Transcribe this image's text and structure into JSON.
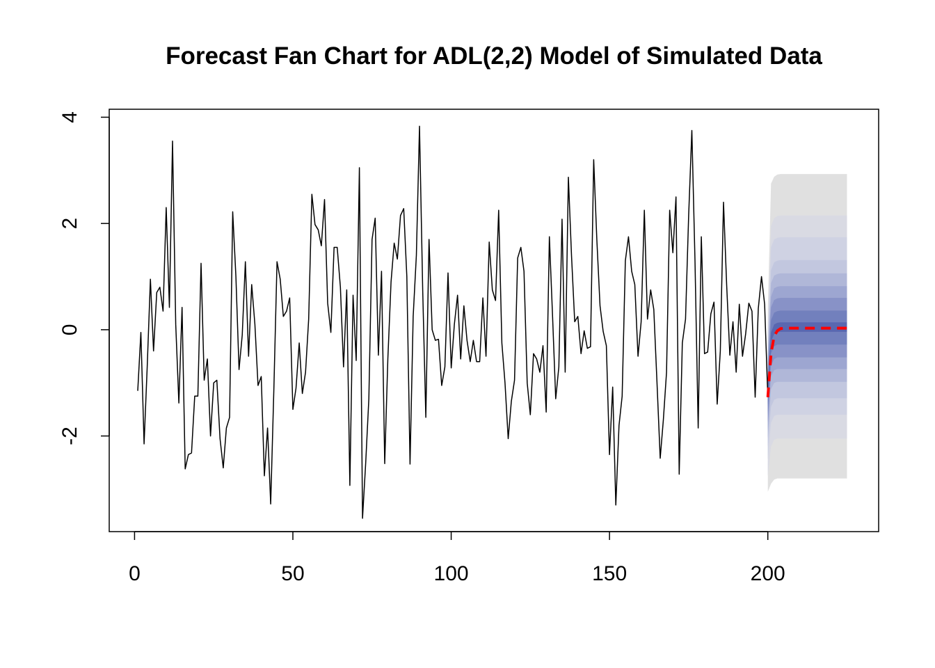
{
  "chart_data": {
    "type": "line",
    "title": "Forecast Fan Chart for ADL(2,2) Model of Simulated Data",
    "xlabel": "",
    "ylabel": "",
    "xlim": [
      -8,
      235
    ],
    "ylim": [
      -3.8,
      4.15
    ],
    "x_ticks": [
      0,
      50,
      100,
      150,
      200
    ],
    "y_ticks": [
      -2,
      0,
      2,
      4
    ],
    "x_tick_labels": [
      "0",
      "50",
      "100",
      "150",
      "200"
    ],
    "y_tick_labels": [
      "-2",
      "0",
      "2",
      "4"
    ],
    "grid": false,
    "legend": "none",
    "series": [
      {
        "role": "observed",
        "color": "#000000",
        "x_start": 1,
        "values": [
          -1.15,
          -0.05,
          -2.15,
          -0.7,
          0.95,
          -0.4,
          0.7,
          0.8,
          0.35,
          2.3,
          0.42,
          3.55,
          0.1,
          -1.38,
          0.42,
          -2.62,
          -2.35,
          -2.32,
          -1.25,
          -1.25,
          1.25,
          -0.95,
          -0.55,
          -2.0,
          -1.0,
          -0.95,
          -2.05,
          -2.6,
          -1.85,
          -1.65,
          2.22,
          1.0,
          -0.75,
          -0.1,
          1.28,
          -0.5,
          0.85,
          0.1,
          -1.05,
          -0.88,
          -2.75,
          -1.85,
          -3.28,
          -1.1,
          1.28,
          0.95,
          0.25,
          0.35,
          0.6,
          -1.5,
          -1.1,
          -0.25,
          -1.2,
          -0.8,
          0.2,
          2.55,
          1.98,
          1.88,
          1.58,
          2.45,
          0.5,
          -0.05,
          1.55,
          1.55,
          0.8,
          -0.7,
          0.75,
          -2.93,
          0.65,
          -0.58,
          3.05,
          -3.55,
          -2.5,
          -1.3,
          1.7,
          2.1,
          -0.48,
          1.1,
          -2.52,
          -0.55,
          0.9,
          1.63,
          1.33,
          2.15,
          2.28,
          1.0,
          -2.53,
          0.25,
          1.4,
          3.83,
          0.75,
          -1.65,
          1.7,
          0.0,
          -0.2,
          -0.18,
          -1.05,
          -0.7,
          1.07,
          -0.72,
          0.1,
          0.65,
          -0.55,
          0.45,
          -0.2,
          -0.6,
          -0.2,
          -0.6,
          -0.6,
          0.6,
          -0.5,
          1.65,
          0.75,
          0.55,
          2.25,
          -0.25,
          -1.0,
          -2.05,
          -1.35,
          -0.95,
          1.35,
          1.55,
          1.1,
          -1.0,
          -1.6,
          -0.45,
          -0.55,
          -0.8,
          -0.3,
          -1.55,
          1.75,
          0.28,
          -1.3,
          -0.7,
          2.08,
          -0.8,
          2.87,
          1.4,
          0.15,
          0.25,
          -0.45,
          -0.02,
          -0.35,
          -0.32,
          3.2,
          1.7,
          0.45,
          -0.03,
          -0.3,
          -2.35,
          -1.08,
          -3.3,
          -1.8,
          -1.25,
          1.3,
          1.75,
          1.1,
          0.85,
          -0.5,
          0.15,
          2.25,
          0.2,
          0.75,
          0.38,
          -1.0,
          -2.42,
          -1.7,
          -0.8,
          2.25,
          1.45,
          2.5,
          -2.72,
          -0.25,
          0.2,
          2.15,
          3.75,
          1.3,
          -1.85,
          1.75,
          -0.45,
          -0.42,
          0.3,
          0.52,
          -1.4,
          -0.4,
          2.4,
          0.85,
          -0.48,
          0.15,
          -0.8,
          0.48,
          -0.5,
          -0.08,
          0.5,
          0.35,
          -1.27,
          0.4,
          1.0,
          0.48,
          -1.27
        ]
      },
      {
        "role": "forecast-mean",
        "color": "#ff0000",
        "style": "dashed",
        "x": [
          200,
          201,
          202,
          203,
          204,
          206,
          209,
          215,
          225
        ],
        "values": [
          -1.27,
          -0.45,
          -0.12,
          -0.02,
          0.02,
          0.03,
          0.03,
          0.03,
          0.03
        ]
      }
    ],
    "fan": {
      "x": [
        200,
        201,
        202,
        203,
        204,
        206,
        209,
        215,
        225
      ],
      "bands": [
        {
          "level": 0.9,
          "color": "#e0e0e0",
          "upper": [
            0.4,
            2.75,
            2.88,
            2.92,
            2.93,
            2.93,
            2.93,
            2.93,
            2.93
          ],
          "lower": [
            -3.05,
            -2.9,
            -2.82,
            -2.8,
            -2.8,
            -2.8,
            -2.8,
            -2.8,
            -2.8
          ]
        },
        {
          "level": 0.8,
          "color": "#d9dae3",
          "upper": [
            0.1,
            1.95,
            2.1,
            2.14,
            2.15,
            2.15,
            2.15,
            2.15,
            2.15
          ],
          "lower": [
            -2.75,
            -2.2,
            -2.07,
            -2.05,
            -2.05,
            -2.05,
            -2.05,
            -2.05,
            -2.05
          ]
        },
        {
          "level": 0.7,
          "color": "#cfd2e3",
          "upper": [
            -0.1,
            1.55,
            1.7,
            1.73,
            1.74,
            1.74,
            1.74,
            1.74,
            1.74
          ],
          "lower": [
            -2.45,
            -1.75,
            -1.62,
            -1.6,
            -1.6,
            -1.6,
            -1.6,
            -1.6,
            -1.6
          ]
        },
        {
          "level": 0.6,
          "color": "#c2c7df",
          "upper": [
            -0.3,
            1.12,
            1.27,
            1.3,
            1.31,
            1.31,
            1.31,
            1.31,
            1.31
          ],
          "lower": [
            -2.2,
            -1.45,
            -1.32,
            -1.29,
            -1.29,
            -1.29,
            -1.29,
            -1.29,
            -1.29
          ]
        },
        {
          "level": 0.5,
          "color": "#b0b7d8",
          "upper": [
            -0.45,
            0.88,
            1.02,
            1.05,
            1.06,
            1.06,
            1.06,
            1.06,
            1.06
          ],
          "lower": [
            -2.05,
            -1.12,
            -1.0,
            -0.98,
            -0.98,
            -0.98,
            -0.98,
            -0.98,
            -0.98
          ]
        },
        {
          "level": 0.4,
          "color": "#9da6d1",
          "upper": [
            -0.6,
            0.62,
            0.78,
            0.81,
            0.82,
            0.82,
            0.82,
            0.82,
            0.82
          ],
          "lower": [
            -1.9,
            -0.88,
            -0.76,
            -0.74,
            -0.74,
            -0.74,
            -0.74,
            -0.74,
            -0.74
          ]
        },
        {
          "level": 0.3,
          "color": "#8892c7",
          "upper": [
            -0.75,
            0.42,
            0.56,
            0.59,
            0.6,
            0.6,
            0.6,
            0.6,
            0.6
          ],
          "lower": [
            -1.75,
            -0.68,
            -0.55,
            -0.52,
            -0.52,
            -0.52,
            -0.52,
            -0.52,
            -0.52
          ]
        },
        {
          "level": 0.2,
          "color": "#7280bd",
          "upper": [
            -0.9,
            0.18,
            0.32,
            0.35,
            0.36,
            0.36,
            0.36,
            0.36,
            0.36
          ],
          "lower": [
            -1.6,
            -0.45,
            -0.31,
            -0.28,
            -0.28,
            -0.28,
            -0.28,
            -0.28,
            -0.28
          ]
        },
        {
          "level": 0.1,
          "color": "#5967b0",
          "upper": [
            -1.05,
            -0.05,
            0.1,
            0.13,
            0.14,
            0.14,
            0.14,
            0.14,
            0.14
          ],
          "lower": [
            -1.45,
            -0.22,
            -0.08,
            -0.05,
            -0.04,
            -0.04,
            -0.04,
            -0.04,
            -0.04
          ]
        }
      ]
    }
  }
}
